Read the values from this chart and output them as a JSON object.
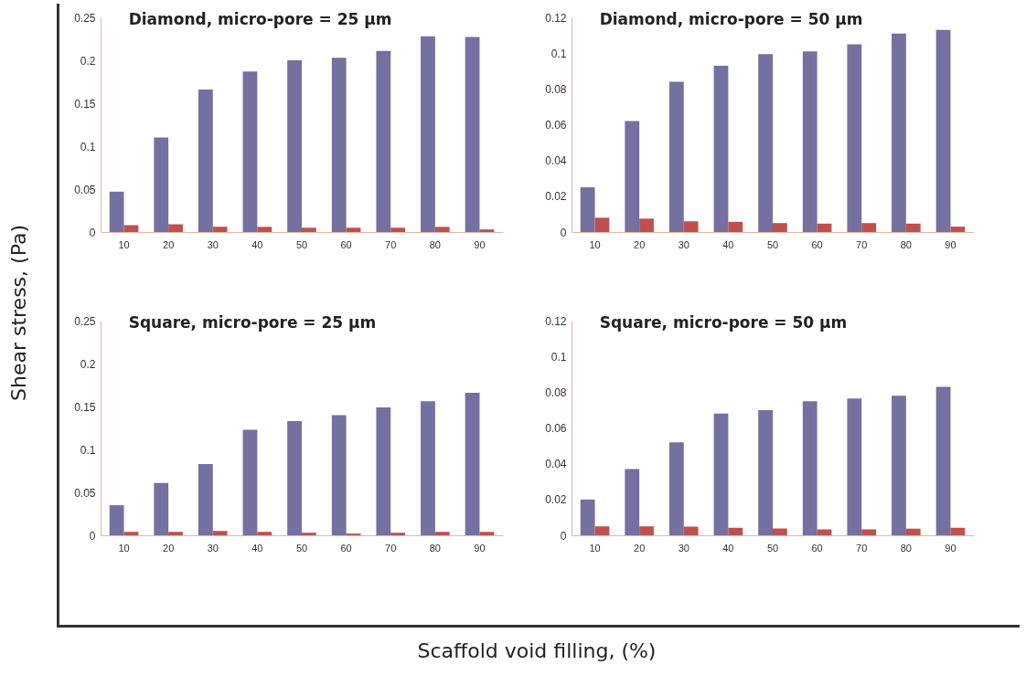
{
  "chart_data": [
    {
      "type": "bar",
      "title": "Diamond, micro-pore = 25 µm",
      "ylabel": "Shear stress, (Pa)",
      "categories": [
        "10",
        "20",
        "30",
        "40",
        "50",
        "60",
        "70",
        "80",
        "90"
      ],
      "ylim": [
        0,
        0.25
      ],
      "yticks": [
        0,
        0.05,
        0.1,
        0.15,
        0.2,
        0.25
      ],
      "grid": false,
      "series": [
        {
          "color": "#7470a0",
          "values": [
            0.047,
            0.11,
            0.166,
            0.187,
            0.2,
            0.203,
            0.211,
            0.228,
            0.227
          ]
        },
        {
          "color": "#c0504d",
          "values": [
            0.008,
            0.009,
            0.006,
            0.006,
            0.005,
            0.005,
            0.005,
            0.006,
            0.003
          ]
        }
      ]
    },
    {
      "type": "bar",
      "title": "Diamond, micro-pore = 50 µm",
      "categories": [
        "10",
        "20",
        "30",
        "40",
        "50",
        "60",
        "70",
        "80",
        "90"
      ],
      "ylim": [
        0,
        0.12
      ],
      "yticks": [
        0,
        0.02,
        0.04,
        0.06,
        0.08,
        0.1,
        0.12
      ],
      "grid": false,
      "series": [
        {
          "color": "#7470a0",
          "values": [
            0.025,
            0.062,
            0.084,
            0.093,
            0.0995,
            0.101,
            0.105,
            0.111,
            0.113
          ]
        },
        {
          "color": "#c0504d",
          "values": [
            0.008,
            0.0075,
            0.006,
            0.0057,
            0.005,
            0.0047,
            0.005,
            0.0047,
            0.003
          ]
        }
      ]
    },
    {
      "type": "bar",
      "title": "Square, micro-pore = 25 µm",
      "xlabel": "Scaffold void filling, (%)",
      "categories": [
        "10",
        "20",
        "30",
        "40",
        "50",
        "60",
        "70",
        "80",
        "90"
      ],
      "ylim": [
        0,
        0.25
      ],
      "yticks": [
        0,
        0.05,
        0.1,
        0.15,
        0.2,
        0.25
      ],
      "grid": false,
      "series": [
        {
          "color": "#7470a0",
          "values": [
            0.035,
            0.061,
            0.083,
            0.123,
            0.133,
            0.14,
            0.149,
            0.156,
            0.166
          ]
        },
        {
          "color": "#c0504d",
          "values": [
            0.004,
            0.004,
            0.005,
            0.004,
            0.003,
            0.002,
            0.003,
            0.004,
            0.004
          ]
        }
      ]
    },
    {
      "type": "bar",
      "title": "Square, micro-pore = 50 µm",
      "categories": [
        "10",
        "20",
        "30",
        "40",
        "50",
        "60",
        "70",
        "80",
        "90"
      ],
      "ylim": [
        0,
        0.12
      ],
      "yticks": [
        0,
        0.02,
        0.04,
        0.06,
        0.08,
        0.1,
        0.12
      ],
      "grid": false,
      "series": [
        {
          "color": "#7470a0",
          "values": [
            0.02,
            0.037,
            0.052,
            0.068,
            0.07,
            0.075,
            0.0765,
            0.078,
            0.083
          ]
        },
        {
          "color": "#c0504d",
          "values": [
            0.005,
            0.005,
            0.0048,
            0.0042,
            0.0038,
            0.0033,
            0.0033,
            0.0037,
            0.0042
          ]
        }
      ]
    }
  ]
}
